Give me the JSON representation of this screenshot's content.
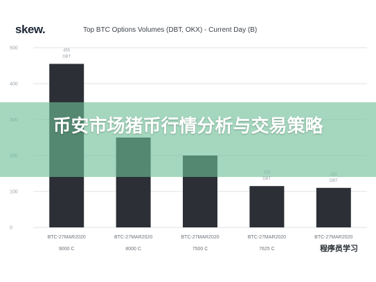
{
  "brand": {
    "logo": "skew",
    "logo_dot": "."
  },
  "overlay": {
    "banner_title": "币安市场猪币行情分析与交易策略",
    "watermark": "程序员学习"
  },
  "chart_data": {
    "type": "bar",
    "title": "Top BTC Options Volumes (DBT, OKX) - Current Day (B)",
    "xlabel": "",
    "ylabel": "",
    "ylim": [
      0,
      500
    ],
    "yticks": [
      0,
      100,
      200,
      300,
      400,
      500
    ],
    "ytick_labels": [
      "0",
      "100",
      "200",
      "300",
      "400",
      "500"
    ],
    "categories_line1": [
      "BTC-27MAR2020",
      "BTC-27MAR2020",
      "BTC-27MAR2020",
      "BTC-27MAR2020",
      "BTC-27MAR2020"
    ],
    "categories_line2": [
      "9000 C",
      "8000 C",
      "7500 C",
      "7625 C",
      "7500 C"
    ],
    "values": [
      455,
      250,
      200,
      115,
      110
    ],
    "value_labels": [
      "455",
      "",
      "",
      "115",
      "110"
    ],
    "venue_labels": [
      "DBT",
      "",
      "",
      "DBT",
      "DBT"
    ],
    "colors": {
      "bar": "#2c3036",
      "grid": "#d5d9dd"
    },
    "grid": true,
    "legend": "none"
  }
}
